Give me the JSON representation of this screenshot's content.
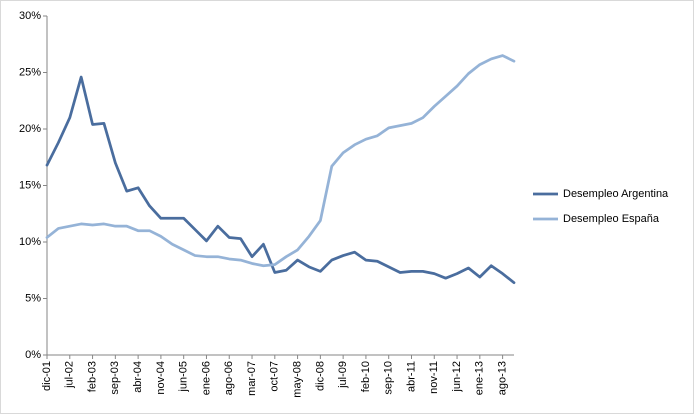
{
  "chart_data": {
    "type": "line",
    "categories": [
      "dic-01",
      null,
      "jul-02",
      null,
      "feb-03",
      null,
      "sep-03",
      null,
      "abr-04",
      null,
      "nov-04",
      null,
      "jun-05",
      null,
      "ene-06",
      null,
      "ago-06",
      null,
      "mar-07",
      null,
      "oct-07",
      null,
      "may-08",
      null,
      "dic-08",
      null,
      "jul-09",
      null,
      "feb-10",
      null,
      "sep-10",
      null,
      "abr-11",
      null,
      "nov-11",
      null,
      "jun-12",
      null,
      "ene-13",
      null,
      "ago-13",
      null
    ],
    "series": [
      {
        "name": "Desempleo Argentina",
        "color": "#4a6d9e",
        "values": [
          16.8,
          18.8,
          21.0,
          24.6,
          20.4,
          20.5,
          17.0,
          14.5,
          14.8,
          13.2,
          12.1,
          12.1,
          12.1,
          11.1,
          10.1,
          11.4,
          10.4,
          10.3,
          8.7,
          9.8,
          7.3,
          7.5,
          8.4,
          7.8,
          7.4,
          8.4,
          8.8,
          9.1,
          8.4,
          8.3,
          7.8,
          7.3,
          7.4,
          7.4,
          7.2,
          6.8,
          7.2,
          7.7,
          6.9,
          7.9,
          7.2,
          6.4
        ]
      },
      {
        "name": "Desempleo España",
        "color": "#95b3d7",
        "values": [
          10.4,
          11.2,
          11.4,
          11.6,
          11.5,
          11.6,
          11.4,
          11.4,
          11.0,
          11.0,
          10.5,
          9.8,
          9.3,
          8.8,
          8.7,
          8.7,
          8.5,
          8.4,
          8.1,
          7.9,
          8.0,
          8.7,
          9.3,
          10.5,
          11.9,
          16.7,
          17.9,
          18.6,
          19.1,
          19.4,
          20.1,
          20.3,
          20.5,
          21.0,
          22.0,
          22.9,
          23.8,
          24.9,
          25.7,
          26.2,
          26.5,
          26.0
        ]
      }
    ],
    "ylim": [
      0,
      30
    ],
    "yticks": [
      {
        "value": 0,
        "label": "0%"
      },
      {
        "value": 5,
        "label": "5%"
      },
      {
        "value": 10,
        "label": "10%"
      },
      {
        "value": 15,
        "label": "15%"
      },
      {
        "value": 20,
        "label": "20%"
      },
      {
        "value": 25,
        "label": "25%"
      },
      {
        "value": 30,
        "label": "30%"
      }
    ],
    "grid": false,
    "legend": "right"
  }
}
